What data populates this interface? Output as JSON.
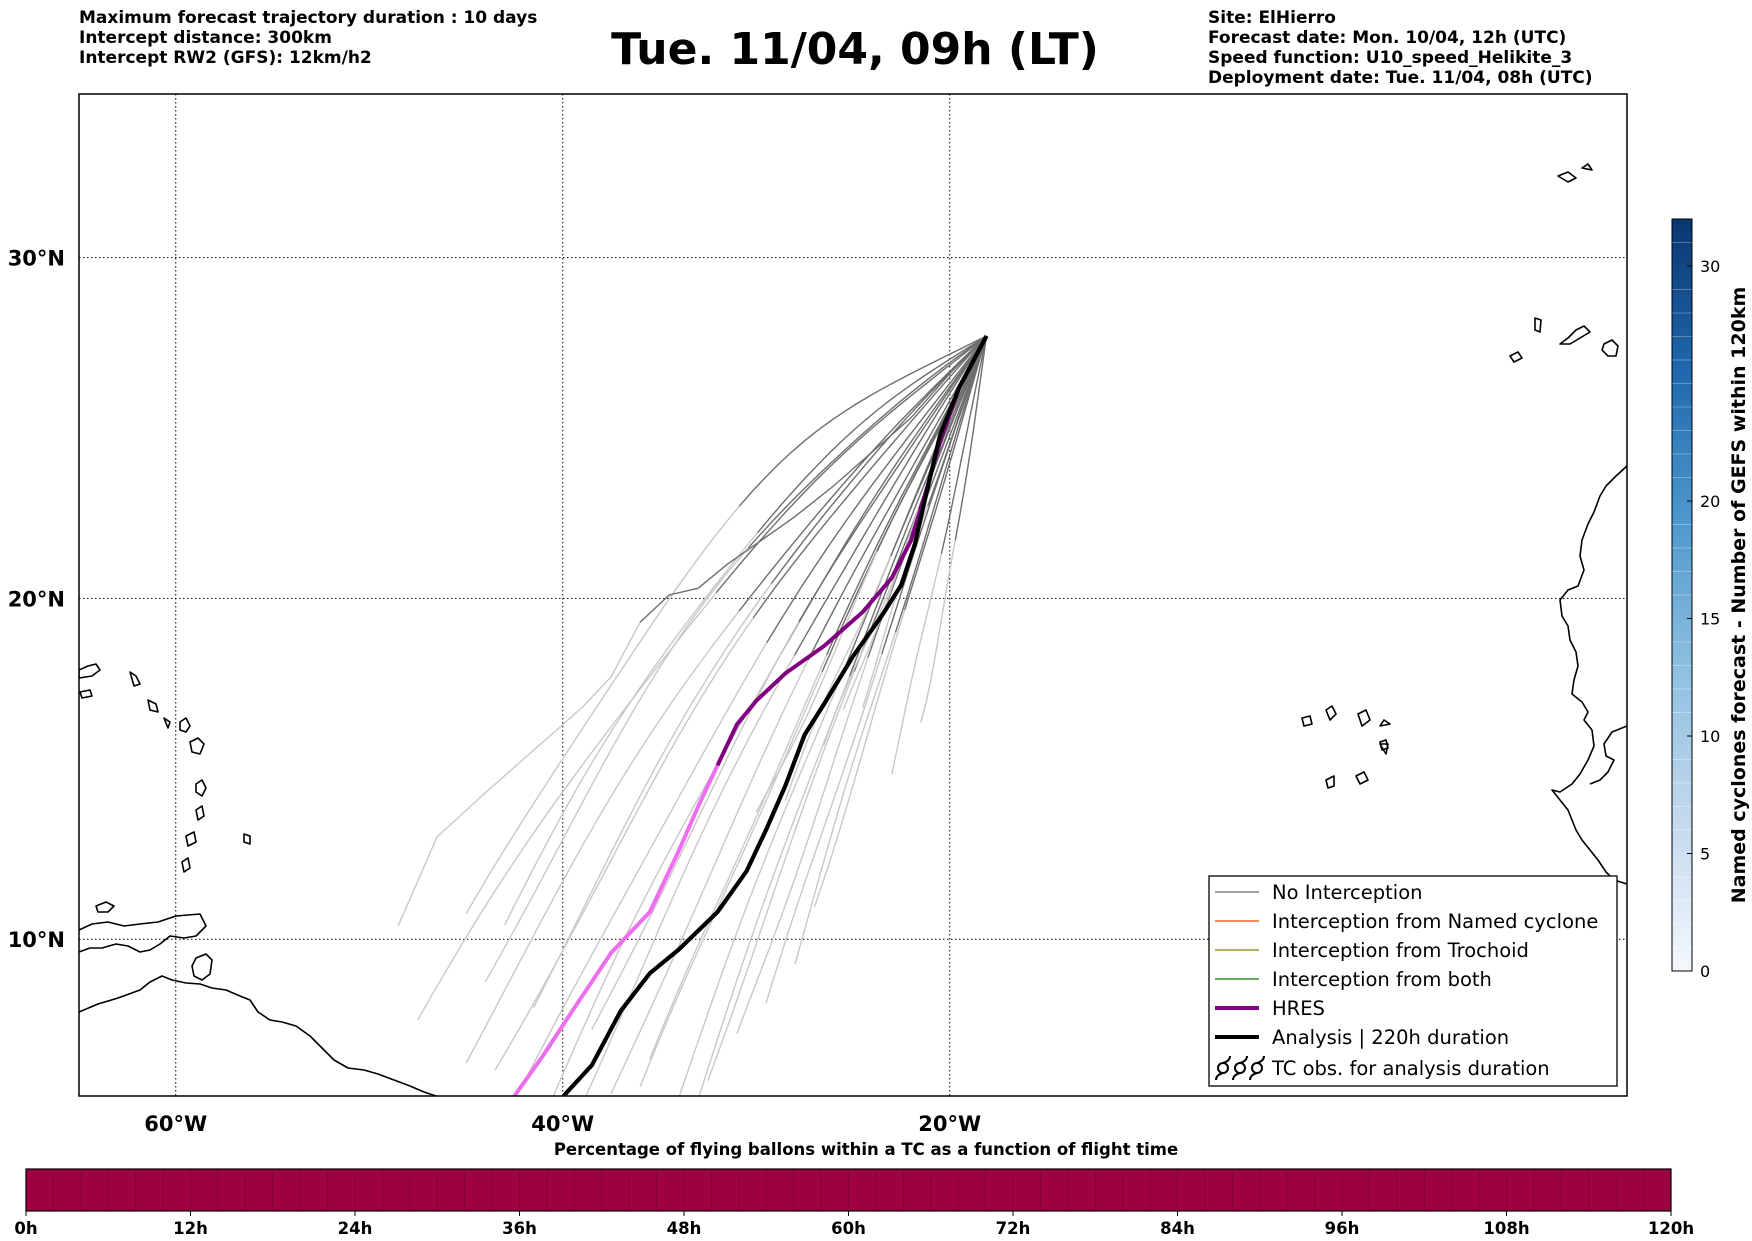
{
  "header": {
    "left": [
      "Maximum forecast trajectory duration : 10 days",
      "Intercept distance: 300km",
      "Intercept RW2 (GFS):  12km/h2"
    ],
    "title": "Tue. 11/04, 09h (LT)",
    "right": [
      "Site: ElHierro",
      "Forecast date: Mon. 10/04, 12h (UTC)",
      "Speed function: U10_speed_Helikite_3",
      "Deployment date: Tue. 11/04, 08h (UTC)"
    ]
  },
  "map": {
    "lon_range": [
      -65,
      15
    ],
    "lat_range": [
      5.4,
      34.8
    ],
    "lon_ticks": [
      {
        "value": -60,
        "label": "60°W"
      },
      {
        "value": -40,
        "label": "40°W"
      },
      {
        "value": -20,
        "label": "20°W"
      }
    ],
    "lat_ticks": [
      {
        "value": 30,
        "label": "30°N"
      },
      {
        "value": 20,
        "label": "20°N"
      },
      {
        "value": 10,
        "label": "10°N"
      }
    ],
    "gridlines": "dotted",
    "launch_site": {
      "name": "ElHierro",
      "lon": -18.1,
      "lat": 27.7
    },
    "colors": {
      "no_interception": "#6e6e6e",
      "named_cyclone": "#ff4500",
      "trochoid": "#808000",
      "both": "#008000",
      "hres": "#800080",
      "analysis": "#000000"
    }
  },
  "legend": {
    "position": "lower-right",
    "items": [
      {
        "label": "No Interception",
        "style": "gray-thin"
      },
      {
        "label": "Interception from Named cyclone",
        "style": "orange-thin"
      },
      {
        "label": "Interception from Trochoid",
        "style": "olive-thin"
      },
      {
        "label": "Interception from both",
        "style": "green-thin"
      },
      {
        "label": "HRES",
        "style": "purple-thick"
      },
      {
        "label": "Analysis | 220h duration",
        "style": "black-thick"
      },
      {
        "label": "TC obs. for analysis duration",
        "style": "cyclone-symbols"
      }
    ]
  },
  "colorbar_right": {
    "label": "Named cyclones forecast - Number of GEFS within 120km",
    "min": 0,
    "max": 32,
    "ticks": [
      "0",
      "5",
      "10",
      "15",
      "20",
      "30"
    ],
    "tick_values": [
      0,
      5,
      10,
      15,
      20,
      30
    ]
  },
  "bottom_bar": {
    "title": "Percentage of flying ballons within a TC as a function of flight time",
    "color": "#9e0142",
    "tick_labels": [
      "0h",
      "12h",
      "24h",
      "36h",
      "48h",
      "60h",
      "72h",
      "84h",
      "96h",
      "108h",
      "120h"
    ]
  }
}
